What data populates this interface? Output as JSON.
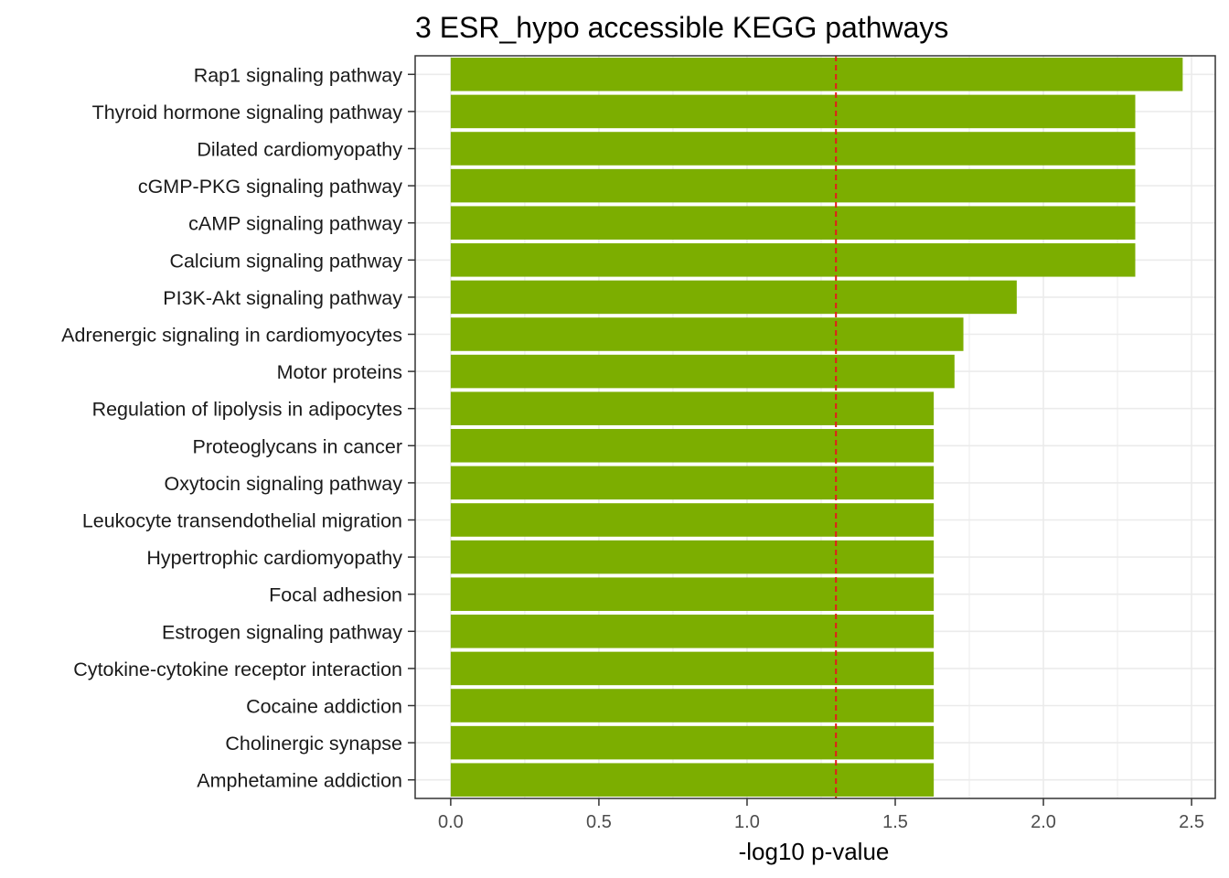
{
  "chart_data": {
    "type": "bar",
    "orientation": "horizontal",
    "title": "3 ESR_hypo accessible KEGG pathways",
    "xlabel": "-log10 p-value",
    "ylabel": "",
    "xlim": [
      -0.12,
      2.58
    ],
    "xticks": [
      0.0,
      0.5,
      1.0,
      1.5,
      2.0,
      2.5
    ],
    "xtick_labels": [
      "0.0",
      "0.5",
      "1.0",
      "1.5",
      "2.0",
      "2.5"
    ],
    "categories": [
      "Rap1 signaling pathway",
      "Thyroid hormone signaling pathway",
      "Dilated cardiomyopathy",
      "cGMP-PKG signaling pathway",
      "cAMP signaling pathway",
      "Calcium signaling pathway",
      "PI3K-Akt signaling pathway",
      "Adrenergic signaling in cardiomyocytes",
      "Motor proteins",
      "Regulation of lipolysis in adipocytes",
      "Proteoglycans in cancer",
      "Oxytocin signaling pathway",
      "Leukocyte transendothelial migration",
      "Hypertrophic cardiomyopathy",
      "Focal adhesion",
      "Estrogen signaling pathway",
      "Cytokine-cytokine receptor interaction",
      "Cocaine addiction",
      "Cholinergic synapse",
      "Amphetamine addiction"
    ],
    "values": [
      2.47,
      2.31,
      2.31,
      2.31,
      2.31,
      2.31,
      1.91,
      1.73,
      1.7,
      1.63,
      1.63,
      1.63,
      1.63,
      1.63,
      1.63,
      1.63,
      1.63,
      1.63,
      1.63,
      1.63
    ],
    "reference_line": {
      "x": 1.3,
      "style": "dashed",
      "color": "#e41a1c"
    },
    "bar_color": "#7cae00",
    "grid": true,
    "background": "#ffffff",
    "grid_color": "#ebebeb"
  }
}
